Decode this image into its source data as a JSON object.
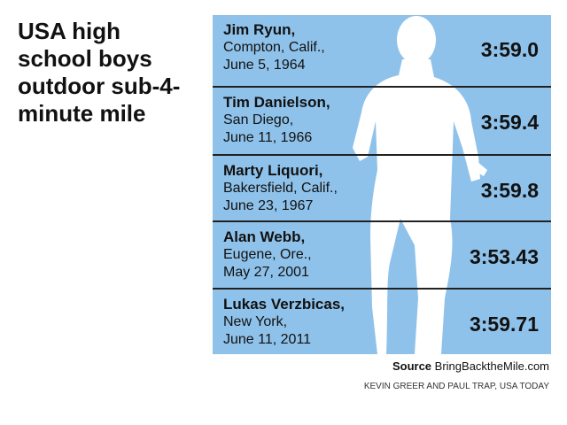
{
  "header": {
    "title": "USA high school boys outdoor sub-4-minute mile"
  },
  "table": {
    "rows": [
      {
        "name": "Jim Ryun,",
        "place": "Compton, Calif.,",
        "date": "June 5, 1964",
        "time": "3:59.0"
      },
      {
        "name": "Tim Danielson,",
        "place": "San Diego,",
        "date": "June 11, 1966",
        "time": "3:59.4"
      },
      {
        "name": "Marty Liquori,",
        "place": "Bakersfield, Calif.,",
        "date": "June 23, 1967",
        "time": "3:59.8"
      },
      {
        "name": "Alan Webb,",
        "place": "Eugene, Ore.,",
        "date": "May 27, 2001",
        "time": "3:53.43"
      },
      {
        "name": "Lukas Verzbicas,",
        "place": "New York,",
        "date": "June 11, 2011",
        "time": "3:59.71"
      }
    ]
  },
  "footer": {
    "source_label": "Source",
    "source": "BringBacktheMile.com",
    "credit": "KEVIN GREER AND PAUL TRAP, USA TODAY"
  }
}
